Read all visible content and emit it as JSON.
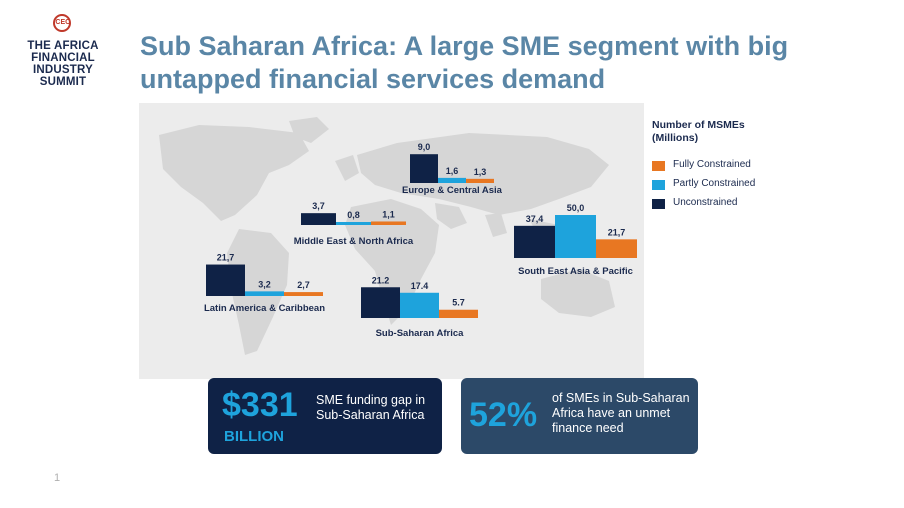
{
  "logo": {
    "mark_text": "CEO",
    "lines": [
      "THE AFRICA",
      "FINANCIAL",
      "INDUSTRY",
      "SUMMIT"
    ]
  },
  "title": "Sub Saharan Africa: A large SME segment with big untapped financial services demand",
  "colors": {
    "unconstrained": "#0f2246",
    "partly": "#1ea3dc",
    "fully": "#e87722",
    "title": "#5a86a6",
    "map": "#d6d6d6"
  },
  "chart_data": {
    "type": "bar",
    "title": "Number of MSMEs (Millions)",
    "series": [
      {
        "name": "Unconstrained",
        "key": "unconstrained"
      },
      {
        "name": "Partly Constrained",
        "key": "partly"
      },
      {
        "name": "Fully Constrained",
        "key": "fully"
      }
    ],
    "legend_order": [
      "Fully Constrained",
      "Partly Constrained",
      "Unconstrained"
    ],
    "legend_position": "right",
    "regions": [
      {
        "name": "Europe & Central Asia",
        "values": [
          9.0,
          1.6,
          1.3
        ],
        "labels": [
          "9,0",
          "1,6",
          "1,3"
        ]
      },
      {
        "name": "Middle East & North Africa",
        "values": [
          3.7,
          0.8,
          1.1
        ],
        "labels": [
          "3,7",
          "0,8",
          "1,1"
        ]
      },
      {
        "name": "Latin America & Caribbean",
        "values": [
          21.7,
          3.2,
          2.7
        ],
        "labels": [
          "21,7",
          "3,2",
          "2,7"
        ]
      },
      {
        "name": "Sub-Saharan Africa",
        "values": [
          21.2,
          17.4,
          5.7
        ],
        "labels": [
          "21.2",
          "17.4",
          "5.7"
        ]
      },
      {
        "name": "South East Asia & Pacific",
        "values": [
          37.4,
          50.0,
          21.7
        ],
        "labels": [
          "37,4",
          "50,0",
          "21,7"
        ]
      }
    ]
  },
  "cards": {
    "funding_gap": {
      "amount": "$331",
      "unit": "BILLION",
      "text": "SME funding gap in Sub-Saharan Africa"
    },
    "unmet_need": {
      "percent": "52%",
      "text": "of SMEs in Sub-Saharan Africa have an unmet finance need"
    }
  },
  "page_number": "1"
}
